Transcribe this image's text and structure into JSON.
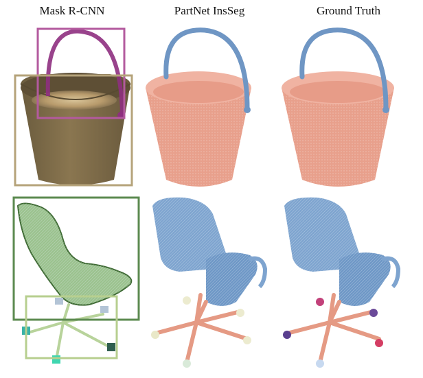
{
  "figure": {
    "columns": [
      {
        "title": "Mask R-CNN"
      },
      {
        "title": "PartNet InsSeg"
      },
      {
        "title": "Ground Truth"
      }
    ],
    "rows": [
      {
        "object": "bucket"
      },
      {
        "object": "chair"
      }
    ]
  },
  "colors": {
    "bucket_body": "#e8a08c",
    "bucket_handle": "#6f96c4",
    "chair_blue": "#7ea4cf",
    "chair_base": "#e59a84",
    "mrcnn_handle_box": "#b35a9e",
    "mrcnn_body_box": "#b5a37a",
    "mrcnn_chair_box": "#5b8a4f",
    "mrcnn_base_box": "#b7cf8f"
  }
}
